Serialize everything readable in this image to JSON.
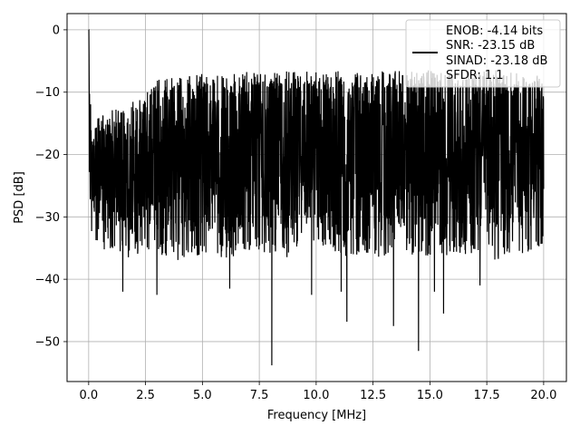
{
  "chart_data": {
    "type": "line",
    "title": "",
    "xlabel": "Frequency [MHz]",
    "ylabel": "PSD [dB]",
    "xlim": [
      -0.95,
      21.0
    ],
    "ylim": [
      -56.4,
      2.6
    ],
    "xticks": [
      0.0,
      2.5,
      5.0,
      7.5,
      10.0,
      12.5,
      15.0,
      17.5,
      20.0
    ],
    "xtick_labels": [
      "0.0",
      "2.5",
      "5.0",
      "7.5",
      "10.0",
      "12.5",
      "15.0",
      "17.5",
      "20.0"
    ],
    "yticks": [
      0,
      -10,
      -20,
      -30,
      -40,
      -50
    ],
    "ytick_labels": [
      "0",
      "−10",
      "−20",
      "−30",
      "−40",
      "−50"
    ],
    "grid": true,
    "legend_position": "upper-right",
    "series_color": "#000000",
    "legend": {
      "lines": [
        "ENOB: -4.14 bits",
        "SNR: -23.15 dB",
        "SINAD: -23.18 dB",
        "SFDR: 1.1"
      ]
    },
    "series": [
      {
        "x": [
          0.0,
          0.02,
          0.05,
          0.1,
          0.15,
          0.2,
          0.35,
          0.5,
          0.75,
          1.0,
          1.5,
          2.0,
          2.5,
          3.0,
          4.0,
          5.0,
          6.0,
          7.0,
          8.0,
          9.0,
          10.0,
          11.0,
          12.0,
          13.0,
          14.0,
          15.0,
          16.0,
          17.0,
          18.0,
          19.0,
          20.0
        ],
        "upper": [
          0.0,
          -2.0,
          -8.0,
          -12.0,
          -14.0,
          -15.0,
          -14.0,
          -13.0,
          -14.0,
          -12.0,
          -13.0,
          -11.0,
          -10.0,
          -8.0,
          -7.5,
          -7.0,
          -7.5,
          -6.5,
          -7.0,
          -6.5,
          -6.5,
          -6.5,
          -7.0,
          -6.5,
          -6.5,
          -6.5,
          -7.0,
          -6.5,
          -6.5,
          -7.0,
          -7.0
        ],
        "lower": [
          -18.0,
          -24.0,
          -28.0,
          -32.0,
          -34.0,
          -32.0,
          -36.0,
          -33.0,
          -37.0,
          -35.0,
          -36.0,
          -37.0,
          -35.0,
          -36.0,
          -37.0,
          -36.0,
          -37.0,
          -36.0,
          -36.0,
          -37.0,
          -36.0,
          -37.0,
          -36.0,
          -37.0,
          -36.0,
          -37.0,
          -36.0,
          -36.0,
          -37.0,
          -36.0,
          -35.0
        ],
        "deep_dips": [
          {
            "x": 1.5,
            "y": -42.0
          },
          {
            "x": 3.0,
            "y": -42.5
          },
          {
            "x": 6.2,
            "y": -41.5
          },
          {
            "x": 8.05,
            "y": -53.8
          },
          {
            "x": 9.8,
            "y": -42.5
          },
          {
            "x": 11.1,
            "y": -42.0
          },
          {
            "x": 11.35,
            "y": -46.8
          },
          {
            "x": 13.4,
            "y": -47.5
          },
          {
            "x": 14.5,
            "y": -51.5
          },
          {
            "x": 15.2,
            "y": -42.0
          },
          {
            "x": 15.6,
            "y": -45.5
          },
          {
            "x": 17.2,
            "y": -41.0
          }
        ]
      }
    ]
  }
}
